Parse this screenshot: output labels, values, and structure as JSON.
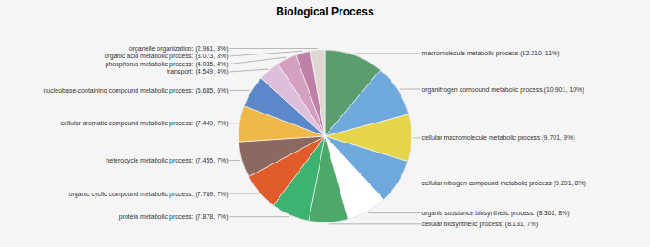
{
  "chart_data": {
    "type": "pie",
    "title": "Biological Process",
    "categories": [
      "macromolecule metabolic process (12.210, 11%)",
      "organitrogen compound metabolic process (10.901, 10%)",
      "cellular macromolecule metabolic process (9.701, 9%)",
      "cellular nitrogen compound metabolic process (9.291, 8%)",
      "organic substance biosynthetic process: (8.362, 8%)",
      "cellular biosynthetic process: (8.131, 7%)",
      "protein metabolic process: (7.878, 7%)",
      "organic cyclic compound metabolic process: (7.769, 7%)",
      "heterocycle metabolic process: (7.455, 7%)",
      "cellular aromatic compound metabolic process: (7.449, 7%)",
      "nucleobase-containing compound metabolic process: (6.685, 6%)",
      "transport: (4.549, 4%)",
      "phosphorus metabolic process: (4.035, 4%)",
      "organic acid metabolic process: (3.073, 3%)",
      "organelle organization: (2.961, 3%)"
    ],
    "values": [
      12.21,
      10.901,
      9.701,
      9.291,
      8.362,
      8.131,
      7.878,
      7.769,
      7.455,
      7.449,
      6.685,
      4.549,
      4.035,
      3.073,
      2.961
    ],
    "colors": [
      "#5b9e6e",
      "#6fa8dc",
      "#e6d44a",
      "#6fa8dc",
      "#ffffff",
      "#4ea86b",
      "#3cb371",
      "#e05c2a",
      "#8b6961",
      "#f0b848",
      "#5b88c8",
      "#ddbfdb",
      "#d4a0c0",
      "#bf80a8",
      "#e0d8d0"
    ]
  }
}
